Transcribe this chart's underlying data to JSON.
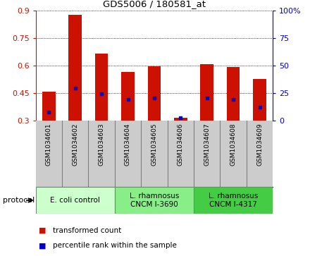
{
  "title": "GDS5006 / 180581_at",
  "samples": [
    "GSM1034601",
    "GSM1034602",
    "GSM1034603",
    "GSM1034604",
    "GSM1034605",
    "GSM1034606",
    "GSM1034607",
    "GSM1034608",
    "GSM1034609"
  ],
  "transformed_counts": [
    0.455,
    0.875,
    0.665,
    0.565,
    0.593,
    0.315,
    0.607,
    0.592,
    0.525
  ],
  "percentile_ranks": [
    0.345,
    0.475,
    0.445,
    0.415,
    0.42,
    0.315,
    0.42,
    0.415,
    0.37
  ],
  "bar_bottom": 0.3,
  "ylim": [
    0.3,
    0.9
  ],
  "yticks_left": [
    0.3,
    0.45,
    0.6,
    0.75,
    0.9
  ],
  "yticks_right": [
    0,
    25,
    50,
    75,
    100
  ],
  "bar_color": "#cc1100",
  "dot_color": "#0000cc",
  "sample_bg": "#cccccc",
  "protocol_colors": [
    "#ccffcc",
    "#88ee88",
    "#44cc44"
  ],
  "legend_items": [
    {
      "label": "transformed count",
      "color": "#cc1100"
    },
    {
      "label": "percentile rank within the sample",
      "color": "#0000cc"
    }
  ],
  "protocol_groups": [
    {
      "label": "E. coli control",
      "start": 0,
      "end": 3
    },
    {
      "label": "L. rhamnosus\nCNCM I-3690",
      "start": 3,
      "end": 6
    },
    {
      "label": "L. rhamnosus\nCNCM I-4317",
      "start": 6,
      "end": 9
    }
  ]
}
